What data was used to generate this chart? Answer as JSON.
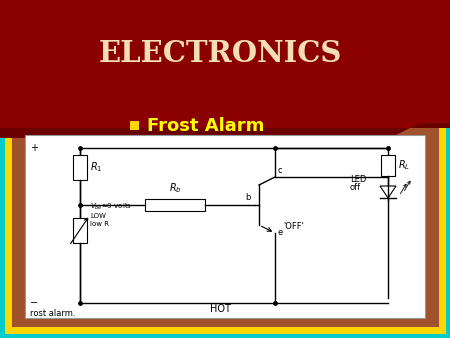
{
  "title": "ELECTRONICS",
  "title_color": "#F5DEB3",
  "title_bg_color": "#8B0000",
  "slide_bg_color": "#00CCCC",
  "panel_bg_color": "#A0522D",
  "panel_border_color": "#FFD700",
  "circuit_bg_color": "#FFFFFF",
  "bullet_color": "#FFD700",
  "subtitle": "Frost Alarm",
  "subtitle_color": "#FFFF00",
  "caption": "rost alarm."
}
